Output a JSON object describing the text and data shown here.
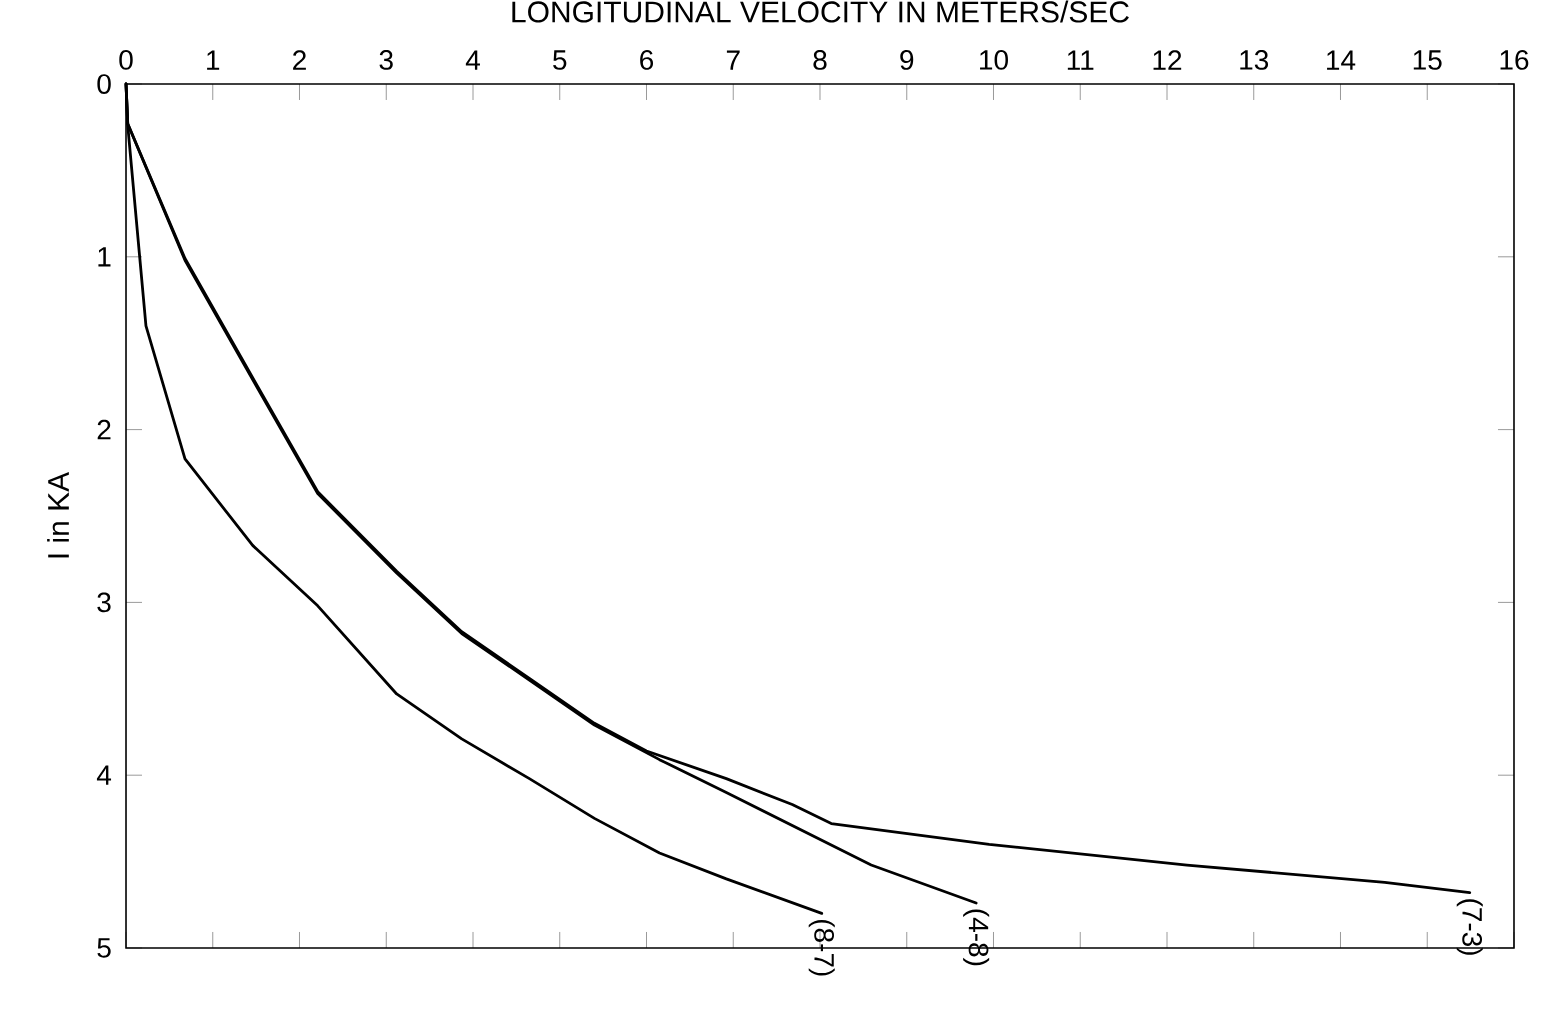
{
  "chart_data": {
    "type": "line",
    "xlabel": "LONGITUDINAL VELOCITY IN METERS/SEC",
    "ylabel": "I in KA",
    "xlim": [
      0,
      16
    ],
    "xticks": [
      0,
      1,
      2,
      3,
      4,
      5,
      6,
      7,
      8,
      9,
      10,
      11,
      12,
      13,
      14,
      15,
      16
    ],
    "ylim": [
      5,
      0
    ],
    "yticks": [
      0,
      1,
      2,
      3,
      4,
      5
    ],
    "grid": false,
    "legend": false,
    "marker": "none",
    "line_style": "solid",
    "series": [
      {
        "name": "(8-7)",
        "color": "#000000",
        "x": [
          0,
          0.02,
          0.23,
          0.68,
          1.46,
          2.21,
          3.12,
          3.87,
          4.65,
          5.4,
          6.15,
          6.92,
          8.02
        ],
        "values": [
          0,
          0.24,
          1.4,
          2.17,
          2.67,
          3.02,
          3.53,
          3.79,
          4.02,
          4.25,
          4.45,
          4.6,
          4.8
        ]
      },
      {
        "name": "(4-8)",
        "color": "#000000",
        "x": [
          0,
          0.02,
          0.68,
          1.46,
          2.21,
          3.12,
          3.87,
          4.65,
          5.4,
          6.15,
          6.92,
          8.59,
          9.8
        ],
        "values": [
          0,
          0.23,
          1.02,
          1.71,
          2.37,
          2.83,
          3.18,
          3.45,
          3.71,
          3.91,
          4.1,
          4.52,
          4.74
        ]
      },
      {
        "name": "(7-3)",
        "color": "#000000",
        "x": [
          0,
          0.02,
          0.68,
          1.46,
          2.21,
          3.12,
          3.87,
          4.65,
          5.4,
          6.0,
          6.92,
          7.68,
          8.13,
          9.95,
          12.23,
          14.51,
          15.49
        ],
        "values": [
          0,
          0.23,
          1.01,
          1.7,
          2.36,
          2.82,
          3.17,
          3.44,
          3.7,
          3.86,
          4.02,
          4.17,
          4.28,
          4.4,
          4.52,
          4.62,
          4.68
        ]
      }
    ]
  }
}
